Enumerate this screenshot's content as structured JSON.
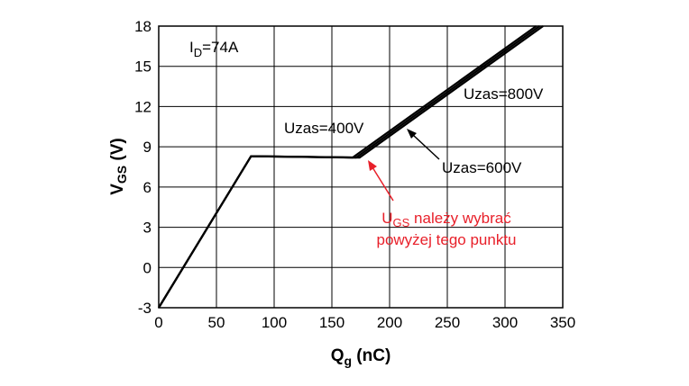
{
  "chart_data": {
    "type": "line",
    "title": "",
    "xlabel_main": "Q",
    "xlabel_sub": "g",
    "xlabel_unit": " (nC)",
    "ylabel_main": "V",
    "ylabel_sub": "GS",
    "ylabel_unit": " (V)",
    "xlim": [
      0,
      350
    ],
    "ylim": [
      -3,
      18
    ],
    "xticks": [
      0,
      50,
      100,
      150,
      200,
      250,
      300,
      350
    ],
    "yticks": [
      -3,
      0,
      3,
      6,
      9,
      12,
      15,
      18
    ],
    "grid": true,
    "condition_main": "I",
    "condition_sub": "D",
    "condition_value": "=74A",
    "series": [
      {
        "name": "Uzas=400V",
        "x": [
          0,
          80,
          168,
          327
        ],
        "y": [
          -3,
          8.3,
          8.2,
          18
        ]
      },
      {
        "name": "Uzas=600V",
        "x": [
          0,
          80,
          171,
          330
        ],
        "y": [
          -3,
          8.3,
          8.2,
          18
        ]
      },
      {
        "name": "Uzas=800V",
        "x": [
          0,
          80,
          174,
          333
        ],
        "y": [
          -3,
          8.3,
          8.2,
          18
        ]
      }
    ],
    "annotations": {
      "label_400": "Uzas=400V",
      "label_600": "Uzas=600V",
      "label_800": "Uzas=800V",
      "note_main": "U",
      "note_sub": "GS",
      "note_line1_rest": " należy wybrać",
      "note_line2": "powyżej tego punktu",
      "note_color": "#e8202a",
      "note_point": {
        "x": 172,
        "y": 8.2
      }
    }
  }
}
